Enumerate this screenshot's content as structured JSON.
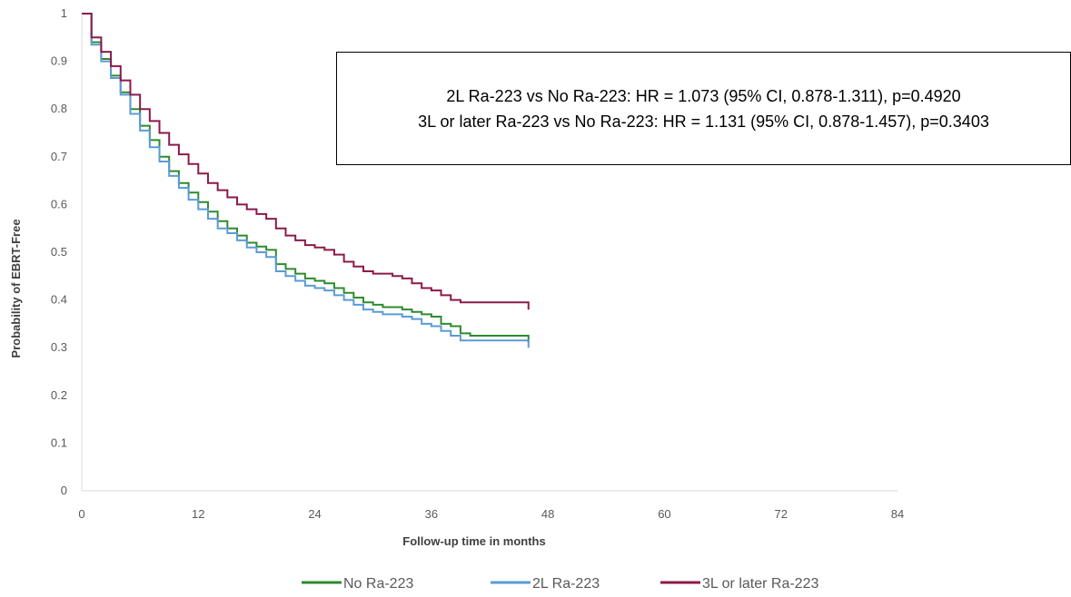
{
  "chart_data": {
    "type": "line",
    "title": "",
    "xlabel": "Follow-up time in months",
    "ylabel": "Probability of EBRT-Free",
    "xlim": [
      0,
      84
    ],
    "ylim": [
      0,
      1
    ],
    "x_ticks": [
      0,
      12,
      24,
      36,
      48,
      60,
      72,
      84
    ],
    "y_ticks": [
      0,
      0.1,
      0.2,
      0.3,
      0.4,
      0.5,
      0.6,
      0.7,
      0.8,
      0.9,
      1
    ],
    "grid": false,
    "step": true,
    "legend_position": "bottom",
    "annotation": [
      "2L Ra-223 vs No Ra-223: HR = 1.073 (95% CI, 0.878-1.311), p=0.4920",
      "3L or later Ra-223 vs No Ra-223: HR = 1.131 (95% CI, 0.878-1.457), p=0.3403"
    ],
    "series": [
      {
        "name": "No Ra-223",
        "color": "#2e8b2e",
        "x": [
          0,
          1,
          2,
          3,
          4,
          5,
          6,
          7,
          8,
          9,
          10,
          11,
          12,
          13,
          14,
          15,
          16,
          17,
          18,
          19,
          20,
          21,
          22,
          23,
          24,
          25,
          26,
          27,
          28,
          29,
          30,
          31,
          32,
          33,
          34,
          35,
          36,
          37,
          38,
          39,
          40,
          42,
          44,
          46
        ],
        "y": [
          1.0,
          0.94,
          0.905,
          0.87,
          0.835,
          0.8,
          0.765,
          0.735,
          0.7,
          0.67,
          0.645,
          0.625,
          0.605,
          0.585,
          0.565,
          0.55,
          0.535,
          0.52,
          0.512,
          0.505,
          0.475,
          0.465,
          0.455,
          0.445,
          0.44,
          0.435,
          0.425,
          0.415,
          0.405,
          0.395,
          0.39,
          0.385,
          0.385,
          0.38,
          0.375,
          0.37,
          0.365,
          0.35,
          0.345,
          0.33,
          0.325,
          0.325,
          0.325,
          0.325
        ]
      },
      {
        "name": "2L Ra-223",
        "color": "#5b9bd5",
        "x": [
          0,
          1,
          2,
          3,
          4,
          5,
          6,
          7,
          8,
          9,
          10,
          11,
          12,
          13,
          14,
          15,
          16,
          17,
          18,
          19,
          20,
          21,
          22,
          23,
          24,
          25,
          26,
          27,
          28,
          29,
          30,
          31,
          32,
          33,
          34,
          35,
          36,
          37,
          38,
          39,
          40,
          42,
          44,
          46
        ],
        "y": [
          1.0,
          0.935,
          0.9,
          0.865,
          0.83,
          0.79,
          0.755,
          0.72,
          0.69,
          0.66,
          0.635,
          0.61,
          0.59,
          0.57,
          0.55,
          0.54,
          0.525,
          0.51,
          0.5,
          0.49,
          0.46,
          0.45,
          0.44,
          0.43,
          0.425,
          0.42,
          0.41,
          0.4,
          0.39,
          0.38,
          0.375,
          0.37,
          0.37,
          0.365,
          0.36,
          0.35,
          0.345,
          0.335,
          0.325,
          0.315,
          0.315,
          0.315,
          0.315,
          0.315
        ]
      },
      {
        "name": "3L or later Ra-223",
        "color": "#8b1a4a",
        "x": [
          0,
          1,
          2,
          3,
          4,
          5,
          6,
          7,
          8,
          9,
          10,
          11,
          12,
          13,
          14,
          15,
          16,
          17,
          18,
          19,
          20,
          21,
          22,
          23,
          24,
          25,
          26,
          27,
          28,
          29,
          30,
          31,
          32,
          33,
          34,
          35,
          36,
          37,
          38,
          39,
          40,
          42,
          44,
          46
        ],
        "y": [
          1.0,
          0.95,
          0.92,
          0.89,
          0.86,
          0.83,
          0.8,
          0.775,
          0.75,
          0.725,
          0.705,
          0.685,
          0.665,
          0.645,
          0.63,
          0.615,
          0.6,
          0.59,
          0.58,
          0.57,
          0.55,
          0.535,
          0.525,
          0.515,
          0.51,
          0.505,
          0.495,
          0.48,
          0.47,
          0.46,
          0.455,
          0.455,
          0.45,
          0.445,
          0.435,
          0.425,
          0.42,
          0.41,
          0.4,
          0.395,
          0.395,
          0.395,
          0.395,
          0.395
        ]
      }
    ]
  }
}
